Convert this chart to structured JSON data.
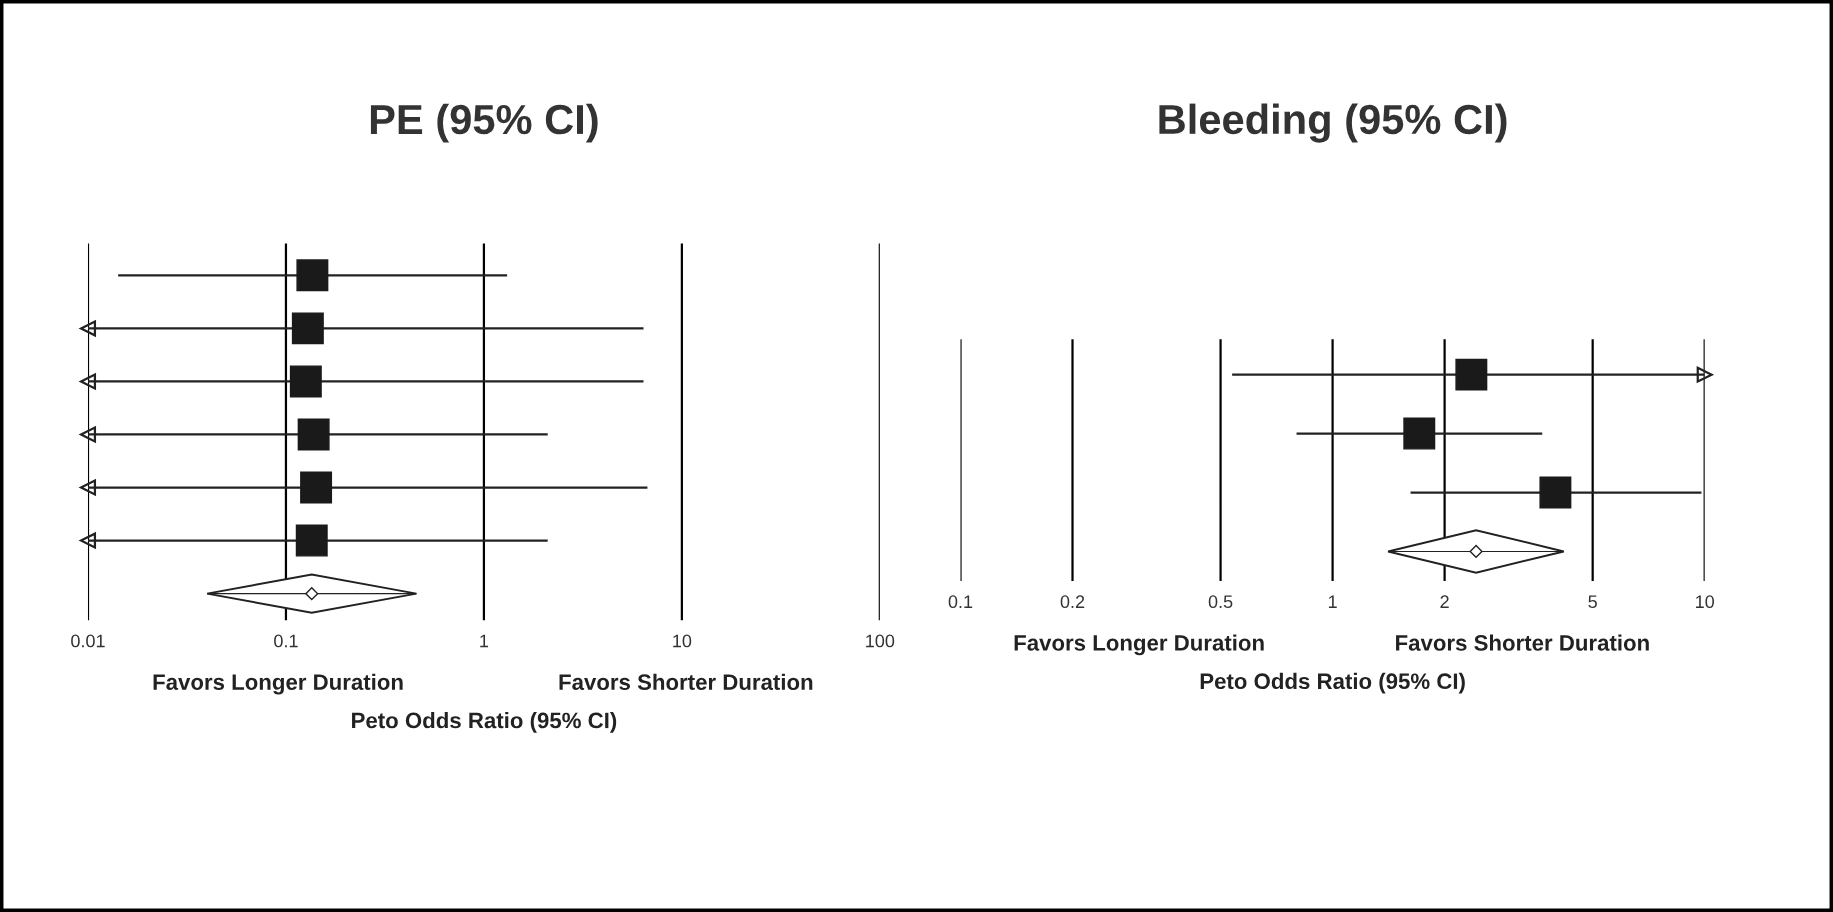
{
  "chart_data": [
    {
      "type": "scatter",
      "title": "PE (95% CI)",
      "xlabel": "Peto Odds Ratio (95% CI)",
      "orientation": "horizontal",
      "log": "x",
      "categories": [
        null,
        null,
        null,
        null,
        null,
        null,
        null
      ],
      "xlim": [
        0.01,
        100
      ],
      "xticks": [
        0.01,
        0.1,
        1,
        10,
        100
      ],
      "grid": "x",
      "tick_labels": "x",
      "annotations": [
        "Favors Longer Duration",
        "Favors Shorter Duration"
      ],
      "series": [
        {
          "color": "#1a1a1a",
          "marker": "square",
          "values": [
            0.136,
            0.129,
            0.126,
            0.138,
            0.142,
            0.135,
            null
          ],
          "errors": [
            [
              0.0142,
              1.31
            ],
            [
              0.01,
              6.4
            ],
            [
              0.01,
              6.4
            ],
            [
              0.01,
              2.1
            ],
            [
              0.01,
              6.7
            ],
            [
              0.01,
              2.1
            ],
            null
          ]
        },
        {
          "color": "#ffffff",
          "marker": "diamond",
          "values": [
            null,
            null,
            null,
            null,
            null,
            null,
            0.135
          ],
          "errors": [
            null,
            null,
            null,
            null,
            null,
            null,
            [
              0.04,
              0.456
            ]
          ]
        }
      ]
    },
    {
      "type": "scatter",
      "title": "Bleeding (95% CI)",
      "xlabel": "Peto Odds Ratio (95% CI)",
      "orientation": "horizontal",
      "log": "x",
      "categories": [
        null,
        null,
        null,
        null
      ],
      "xlim": [
        0.1,
        10
      ],
      "xticks": [
        0.1,
        0.2,
        0.5,
        1,
        2,
        5,
        10
      ],
      "grid": "x",
      "tick_labels": "x",
      "annotations": [
        "Favors Longer Duration",
        "Favors Shorter Duration"
      ],
      "series": [
        {
          "color": "#1a1a1a",
          "marker": "square",
          "values": [
            2.36,
            1.71,
            3.97,
            null
          ],
          "errors": [
            [
              0.537,
              10
            ],
            [
              0.8,
              3.66
            ],
            [
              1.62,
              9.8
            ],
            null
          ]
        },
        {
          "color": "#ffffff",
          "marker": "diamond",
          "values": [
            null,
            null,
            null,
            2.43
          ],
          "errors": [
            null,
            null,
            null,
            [
              1.41,
              4.18
            ]
          ]
        }
      ]
    }
  ]
}
